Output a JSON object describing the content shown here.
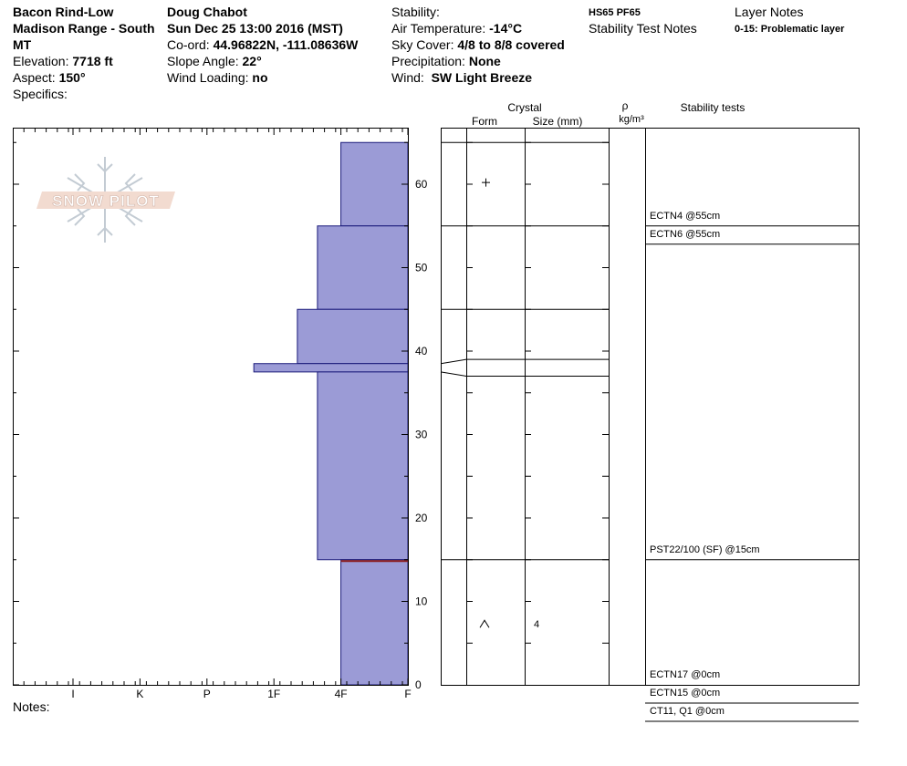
{
  "header": {
    "location_line1": "Bacon Rind-Low",
    "location_line2": "Madison Range - South",
    "location_line3": "MT",
    "elevation_label": "Elevation:",
    "elevation_value": "7718 ft",
    "aspect_label": "Aspect:",
    "aspect_value": "150°",
    "specifics_label": "Specifics:",
    "observer": "Doug Chabot",
    "datetime": "Sun Dec 25 13:00 2016 (MST)",
    "coord_label": "Co-ord:",
    "coord_value": "44.96822N, -111.08636W",
    "slope_label": "Slope Angle:",
    "slope_value": "22°",
    "wind_loading_label": "Wind Loading:",
    "wind_loading_value": "no",
    "stability_label": "Stability:",
    "air_temp_label": "Air Temperature:",
    "air_temp_value": "-14°C",
    "sky_label": "Sky Cover:",
    "sky_value": "4/8 to 8/8 covered",
    "precip_label": "Precipitation:",
    "precip_value": "None",
    "wind_label": "Wind:",
    "wind_value": "SW Light Breeze",
    "hs_pf": "HS65  PF65",
    "stability_test_notes": "Stability Test Notes",
    "layer_notes_label": "Layer Notes",
    "layer_note_1": "0-15: Problematic layer",
    "notes_label": "Notes:"
  },
  "logo_text": "SNOW PILOT",
  "colors": {
    "hardness_fill": "#9b9bd6",
    "hardness_stroke": "#1a1a7a",
    "weak_layer_line": "#8b1a1a"
  },
  "chart_data": {
    "type": "snow-profile",
    "y_axis": {
      "label": "",
      "range": [
        0,
        66
      ],
      "ticks": [
        0,
        10,
        20,
        30,
        40,
        50,
        60
      ]
    },
    "x_axis": {
      "labels": [
        "I",
        "K",
        "P",
        "1F",
        "4F",
        "F"
      ],
      "direction": "hardness"
    },
    "layers": [
      {
        "top": 65,
        "bottom": 55,
        "hardness": "F"
      },
      {
        "top": 55,
        "bottom": 45,
        "hardness": "F+"
      },
      {
        "top": 45,
        "bottom": 38.5,
        "hardness": "4F-"
      },
      {
        "top": 38.5,
        "bottom": 37.5,
        "hardness": "4F+"
      },
      {
        "top": 37.5,
        "bottom": 15,
        "hardness": "F+"
      },
      {
        "top": 15,
        "bottom": 0,
        "hardness": "F"
      }
    ],
    "hardness_index": {
      "F": 5,
      "F+": 4.65,
      "4F-": 4.35,
      "4F": 4,
      "4F+": 3.7
    },
    "weak_layer_depth": 15,
    "crystal_header": {
      "title": "Crystal",
      "form": "Form",
      "size": "Size (mm)",
      "rho": "ρ",
      "rho_unit": "kg/m³",
      "tests": "Stability tests"
    },
    "crystals": [
      {
        "depth": 60.2,
        "form": "+",
        "size": ""
      },
      {
        "depth": 7.3,
        "form": "^",
        "size": "4"
      }
    ],
    "layer_boundaries": [
      65,
      55,
      45,
      39,
      37,
      15
    ],
    "stability_tests": [
      {
        "depth": 55,
        "text": "ECTN4 @55cm"
      },
      {
        "depth": 55,
        "text": "ECTN6 @55cm"
      },
      {
        "depth": 15,
        "text": "PST22/100 (SF) @15cm"
      },
      {
        "depth": 0,
        "text": "ECTN17 @0cm"
      },
      {
        "depth": 0,
        "text": "ECTN15 @0cm"
      },
      {
        "depth": 0,
        "text": "CT11, Q1 @0cm"
      }
    ]
  }
}
